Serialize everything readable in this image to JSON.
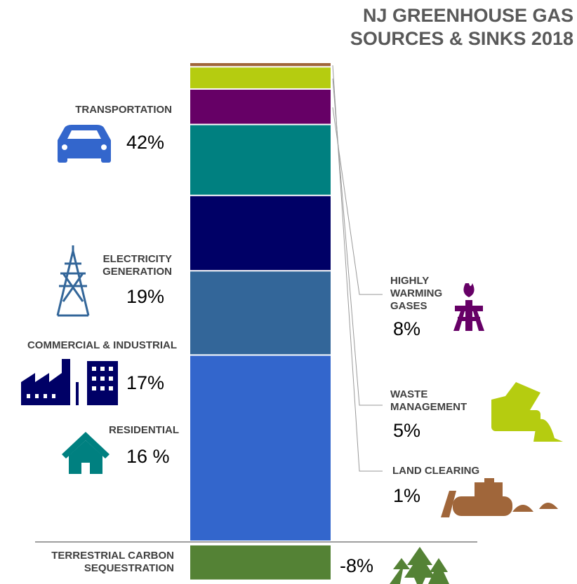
{
  "chart_data": {
    "type": "bar",
    "stacked": true,
    "title": "NJ GREENHOUSE GAS SOURCES & SINKS 2018",
    "categories": [
      "TRANSPORTATION",
      "ELECTRICITY GENERATION",
      "COMMERCIAL & INDUSTRIAL",
      "RESIDENTIAL",
      "HIGHLY WARMING GASES",
      "WASTE MANAGEMENT",
      "LAND CLEARING",
      "TERRESTRIAL CARBON SEQUESTRATION"
    ],
    "values": [
      42,
      19,
      17,
      16,
      8,
      5,
      1,
      -8
    ],
    "value_labels": [
      "42%",
      "19%",
      "17%",
      "16 %",
      "8%",
      "5%",
      "1%",
      "-8%"
    ],
    "colors": [
      "#3366cc",
      "#336699",
      "#000066",
      "#008080",
      "#660066",
      "#b5cc10",
      "#a0663a",
      "#548235"
    ]
  }
}
